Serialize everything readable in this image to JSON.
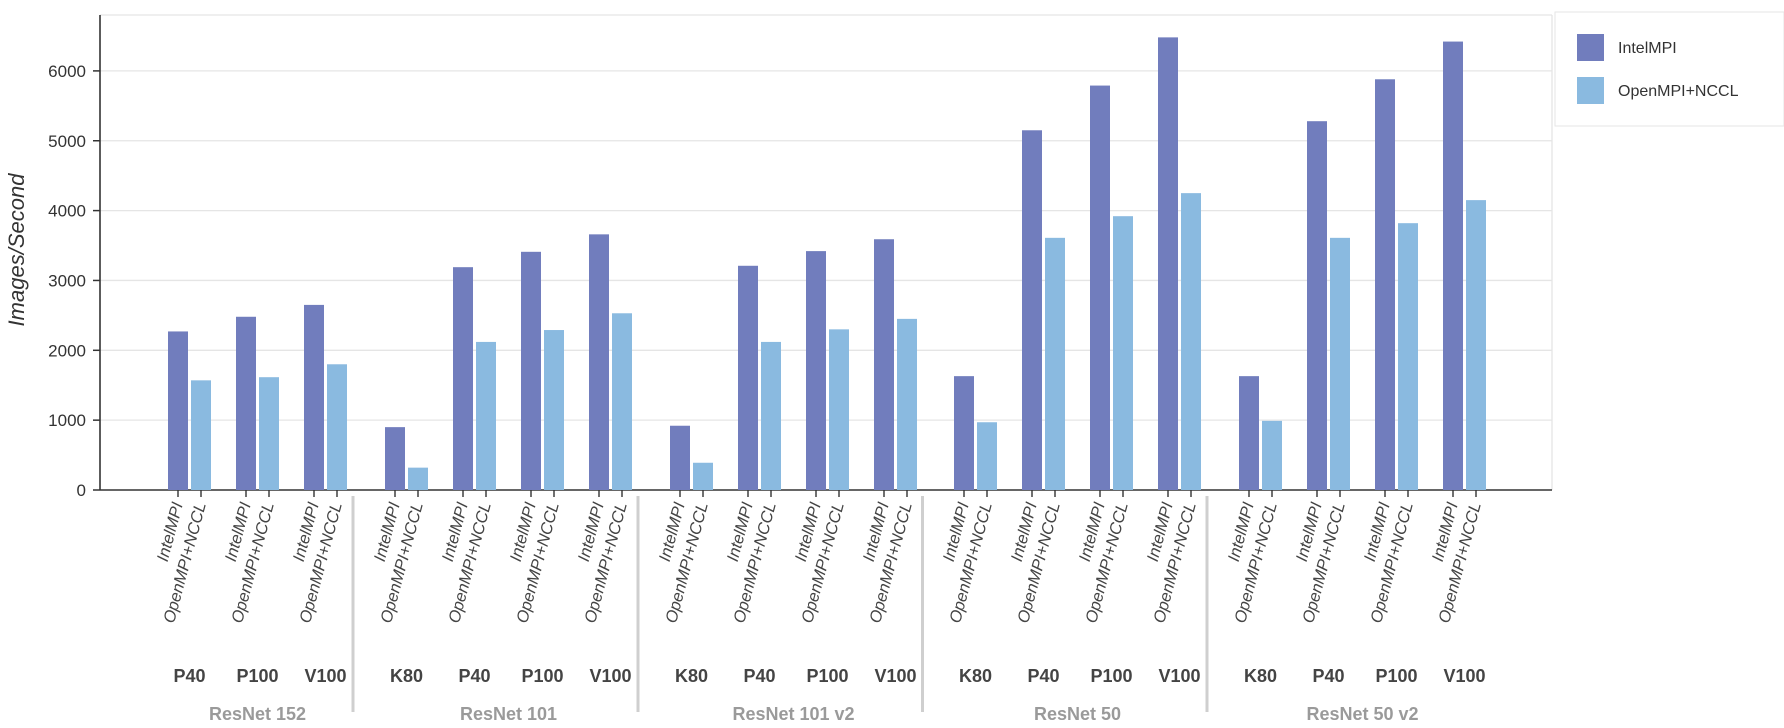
{
  "chart_data": {
    "type": "bar",
    "ylabel": "Images/Second",
    "ylim": [
      0,
      6800
    ],
    "yticks": [
      0,
      1000,
      2000,
      3000,
      4000,
      5000,
      6000
    ],
    "grid": true,
    "legend_position": "top-right",
    "series": [
      {
        "name": "IntelMPI",
        "color": "#717dbd"
      },
      {
        "name": "OpenMPI+NCCL",
        "color": "#8abae0"
      }
    ],
    "groups": [
      {
        "model": "ResNet 152",
        "gpus": [
          {
            "gpu": "P40",
            "values": [
              2270,
              1570
            ]
          },
          {
            "gpu": "P100",
            "values": [
              2480,
              1615
            ]
          },
          {
            "gpu": "V100",
            "values": [
              2650,
              1800
            ]
          }
        ]
      },
      {
        "model": "ResNet 101",
        "gpus": [
          {
            "gpu": "K80",
            "values": [
              900,
              320
            ]
          },
          {
            "gpu": "P40",
            "values": [
              3190,
              2120
            ]
          },
          {
            "gpu": "P100",
            "values": [
              3410,
              2290
            ]
          },
          {
            "gpu": "V100",
            "values": [
              3660,
              2530
            ]
          }
        ]
      },
      {
        "model": "ResNet 101 v2",
        "gpus": [
          {
            "gpu": "K80",
            "values": [
              920,
              390
            ]
          },
          {
            "gpu": "P40",
            "values": [
              3210,
              2120
            ]
          },
          {
            "gpu": "P100",
            "values": [
              3420,
              2300
            ]
          },
          {
            "gpu": "V100",
            "values": [
              3590,
              2450
            ]
          }
        ]
      },
      {
        "model": "ResNet 50",
        "gpus": [
          {
            "gpu": "K80",
            "values": [
              1630,
              970
            ]
          },
          {
            "gpu": "P40",
            "values": [
              5150,
              3610
            ]
          },
          {
            "gpu": "P100",
            "values": [
              5790,
              3920
            ]
          },
          {
            "gpu": "V100",
            "values": [
              6480,
              4250
            ]
          }
        ]
      },
      {
        "model": "ResNet 50 v2",
        "gpus": [
          {
            "gpu": "K80",
            "values": [
              1630,
              990
            ]
          },
          {
            "gpu": "P40",
            "values": [
              5280,
              3610
            ]
          },
          {
            "gpu": "P100",
            "values": [
              5880,
              3820
            ]
          },
          {
            "gpu": "V100",
            "values": [
              6420,
              4150
            ]
          }
        ]
      }
    ]
  }
}
